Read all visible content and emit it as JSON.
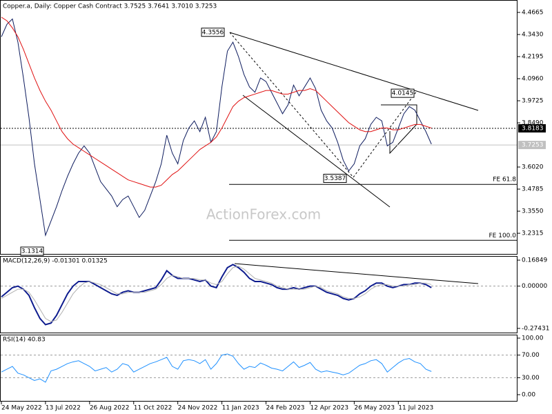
{
  "chart_data": [
    {
      "type": "line",
      "title": "Copper.a, Daily:  Copper Cash Contract  3.7525 3.7641 3.7010 3.7253",
      "watermark": "ActionForex.com",
      "categories": [
        "24 May 2022",
        null,
        null,
        null,
        null,
        null,
        null,
        null,
        "13 Jul 2022",
        null,
        null,
        null,
        null,
        null,
        null,
        null,
        "26 Aug 2022",
        null,
        null,
        null,
        null,
        null,
        null,
        null,
        "11 Oct 2022",
        null,
        null,
        null,
        null,
        null,
        null,
        null,
        "24 Nov 2022",
        null,
        null,
        null,
        null,
        null,
        null,
        null,
        "11 Jan 2023",
        null,
        null,
        null,
        null,
        null,
        null,
        null,
        "24 Feb 2023",
        null,
        null,
        null,
        null,
        null,
        null,
        null,
        "12 Apr 2023",
        null,
        null,
        null,
        null,
        null,
        null,
        null,
        "26 May 2023",
        null,
        null,
        null,
        null,
        null,
        null,
        null,
        "11 Jul 2023",
        null,
        null,
        null,
        null,
        null,
        null
      ],
      "series": [
        {
          "color": "#0d1b5e",
          "values": [
            4.33,
            4.4,
            4.43,
            4.3,
            4.1,
            3.88,
            3.62,
            3.42,
            3.22,
            3.3,
            3.38,
            3.47,
            3.55,
            3.62,
            3.68,
            3.72,
            3.68,
            3.6,
            3.52,
            3.48,
            3.44,
            3.38,
            3.42,
            3.44,
            3.38,
            3.32,
            3.36,
            3.44,
            3.52,
            3.62,
            3.78,
            3.68,
            3.62,
            3.75,
            3.82,
            3.86,
            3.8,
            3.88,
            3.74,
            3.8,
            4.05,
            4.25,
            4.3,
            4.22,
            4.12,
            4.05,
            4.02,
            4.1,
            4.08,
            4.02,
            3.96,
            3.9,
            3.95,
            4.06,
            4.0,
            4.05,
            4.1,
            4.04,
            3.92,
            3.86,
            3.82,
            3.74,
            3.64,
            3.58,
            3.62,
            3.72,
            3.76,
            3.84,
            3.88,
            3.86,
            3.72,
            3.74,
            3.82,
            3.9,
            3.94,
            3.92,
            3.86,
            3.8,
            3.73
          ]
        },
        {
          "color": "#e01010",
          "values": [
            4.44,
            4.42,
            4.38,
            4.33,
            4.26,
            4.18,
            4.1,
            4.03,
            3.97,
            3.92,
            3.86,
            3.8,
            3.76,
            3.73,
            3.71,
            3.69,
            3.67,
            3.65,
            3.63,
            3.61,
            3.59,
            3.57,
            3.55,
            3.53,
            3.52,
            3.51,
            3.5,
            3.49,
            3.49,
            3.5,
            3.53,
            3.56,
            3.58,
            3.61,
            3.64,
            3.67,
            3.7,
            3.72,
            3.74,
            3.77,
            3.82,
            3.88,
            3.94,
            3.97,
            3.99,
            4.0,
            4.01,
            4.02,
            4.03,
            4.03,
            4.02,
            4.01,
            4.01,
            4.02,
            4.03,
            4.03,
            4.04,
            4.03,
            4.0,
            3.97,
            3.94,
            3.91,
            3.88,
            3.85,
            3.83,
            3.81,
            3.8,
            3.8,
            3.81,
            3.82,
            3.82,
            3.81,
            3.81,
            3.82,
            3.83,
            3.84,
            3.84,
            3.83,
            3.82
          ]
        }
      ],
      "ylim": [
        3.116,
        4.536
      ],
      "yticks": [
        4.4665,
        {
          "value": 4.343,
          "label": "4.3430"
        },
        4.2195,
        {
          "value": 4.096,
          "label": "4.0960"
        },
        3.9725,
        {
          "value": 3.849,
          "label": "3.8490"
        },
        {
          "value": 3.602,
          "label": "3.6020"
        },
        3.4785,
        {
          "value": 3.355,
          "label": "3.3550"
        },
        3.2315
      ],
      "price_lines": [
        {
          "value": 3.8183,
          "color": "#000000"
        },
        {
          "value": 3.7253,
          "color": "#c0c0c0"
        }
      ],
      "annotations": [
        4.3556,
        4.0145,
        3.5387,
        3.1314
      ],
      "fe_levels": [
        {
          "label": "FE 61.8",
          "value": 3.505
        },
        {
          "label": "FE 100.0",
          "value": 3.192
        }
      ]
    },
    {
      "type": "line",
      "title": "MACD(12,26,9) -0.01301 0.01325",
      "series": [
        {
          "color": "#0d1b8e",
          "values": [
            -0.07,
            -0.04,
            -0.01,
            0.0,
            -0.02,
            -0.06,
            -0.14,
            -0.21,
            -0.25,
            -0.24,
            -0.19,
            -0.12,
            -0.05,
            0.0,
            0.03,
            0.03,
            0.03,
            0.01,
            -0.01,
            -0.03,
            -0.05,
            -0.06,
            -0.04,
            -0.03,
            -0.04,
            -0.04,
            -0.03,
            -0.02,
            -0.01,
            0.04,
            0.1,
            0.07,
            0.05,
            0.05,
            0.05,
            0.04,
            0.03,
            0.04,
            0.0,
            -0.01,
            0.06,
            0.12,
            0.14,
            0.12,
            0.09,
            0.05,
            0.03,
            0.03,
            0.02,
            0.01,
            -0.01,
            -0.02,
            -0.02,
            -0.01,
            -0.02,
            -0.01,
            0.0,
            0.0,
            -0.02,
            -0.04,
            -0.05,
            -0.06,
            -0.08,
            -0.09,
            -0.08,
            -0.05,
            -0.03,
            0.0,
            0.02,
            0.02,
            0.0,
            -0.01,
            0.0,
            0.01,
            0.01,
            0.02,
            0.02,
            0.01,
            -0.01
          ]
        },
        {
          "color": "#b0b0b0",
          "values": [
            -0.08,
            -0.06,
            -0.04,
            -0.02,
            -0.02,
            -0.04,
            -0.09,
            -0.15,
            -0.21,
            -0.23,
            -0.22,
            -0.17,
            -0.11,
            -0.05,
            -0.01,
            0.02,
            0.03,
            0.02,
            0.01,
            -0.01,
            -0.03,
            -0.05,
            -0.05,
            -0.04,
            -0.04,
            -0.04,
            -0.04,
            -0.03,
            -0.02,
            0.01,
            0.05,
            0.07,
            0.06,
            0.05,
            0.05,
            0.05,
            0.04,
            0.04,
            0.02,
            0.01,
            0.03,
            0.08,
            0.12,
            0.13,
            0.11,
            0.08,
            0.05,
            0.04,
            0.03,
            0.02,
            0.0,
            -0.01,
            -0.02,
            -0.02,
            -0.02,
            -0.02,
            -0.01,
            0.0,
            -0.01,
            -0.03,
            -0.04,
            -0.05,
            -0.07,
            -0.08,
            -0.08,
            -0.07,
            -0.05,
            -0.02,
            0.0,
            0.01,
            0.01,
            0.0,
            0.0,
            0.0,
            0.01,
            0.01,
            0.02,
            0.02,
            0.01
          ]
        }
      ],
      "ylim": [
        -0.306,
        0.191
      ],
      "yticks": [
        0.16849,
        {
          "value": 0,
          "label": "0.00000"
        },
        -0.27431
      ]
    },
    {
      "type": "line",
      "title": "RSI(14) 40.83",
      "series": [
        {
          "color": "#1e90ff",
          "values": [
            40,
            45,
            50,
            38,
            35,
            30,
            25,
            28,
            22,
            42,
            45,
            50,
            55,
            58,
            60,
            55,
            50,
            42,
            45,
            48,
            40,
            45,
            55,
            52,
            40,
            45,
            50,
            55,
            58,
            62,
            66,
            50,
            45,
            60,
            62,
            60,
            55,
            62,
            45,
            55,
            70,
            72,
            68,
            55,
            45,
            50,
            48,
            56,
            52,
            47,
            45,
            42,
            50,
            58,
            48,
            52,
            57,
            45,
            40,
            42,
            40,
            38,
            35,
            38,
            45,
            52,
            55,
            60,
            62,
            55,
            40,
            48,
            56,
            62,
            64,
            58,
            55,
            45,
            41
          ]
        }
      ],
      "ylim": [
        -12.2,
        104.9
      ],
      "yticks": [
        {
          "value": 100,
          "label": "100.00"
        },
        {
          "value": 70,
          "label": "70.00"
        },
        {
          "value": 30,
          "label": "30.00"
        },
        {
          "value": 0,
          "label": "0.00"
        }
      ],
      "dashed_levels": [
        70,
        30
      ]
    }
  ]
}
